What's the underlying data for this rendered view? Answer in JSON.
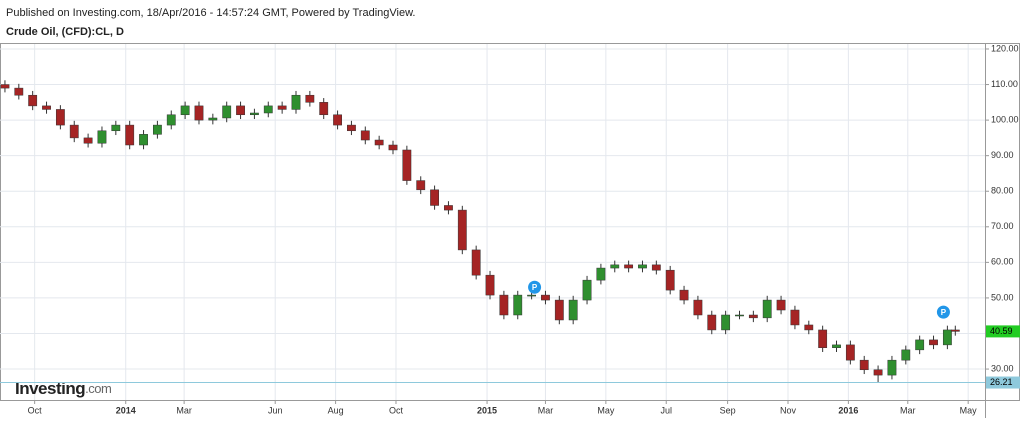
{
  "header": "Published on Investing.com, 18/Apr/2016 - 14:57:24 GMT, Powered by TradingView.",
  "logo": {
    "brand": "Investing",
    "suffix": ".com"
  },
  "chart_data": {
    "type": "candlestick",
    "title": "Crude Oil, (CFD):CL, D",
    "x": [
      0,
      14,
      28,
      42,
      56,
      70,
      84,
      98,
      112,
      126,
      140,
      154,
      168,
      182,
      196,
      210,
      224,
      238,
      252,
      266,
      280,
      294,
      308,
      322,
      336,
      350,
      364,
      378,
      392,
      406,
      420,
      434,
      448,
      462,
      476,
      490,
      504,
      518,
      532,
      546,
      560,
      574,
      588,
      602,
      616,
      630,
      644,
      658,
      672,
      686,
      700,
      714,
      728,
      742,
      756,
      770,
      784,
      798,
      812,
      826,
      840,
      854,
      868,
      882,
      896,
      910,
      924,
      938,
      952,
      960
    ],
    "open": [
      110,
      109,
      107,
      104,
      103,
      98.6,
      95,
      93.5,
      97,
      98.6,
      93,
      96,
      98.6,
      101.5,
      104,
      100,
      100.6,
      104,
      101.5,
      102,
      104,
      103,
      107,
      105,
      101.5,
      98.6,
      97,
      94.4,
      93,
      91.6,
      83,
      80.4,
      76,
      74.7,
      63.5,
      56.4,
      50.8,
      45.2,
      50.8,
      50.8,
      49.4,
      43.8,
      49.4,
      55,
      58.4,
      59.3,
      58.4,
      59.3,
      57.8,
      52.2,
      49.4,
      45.2,
      41,
      45.2,
      45.2,
      44.4,
      49.4,
      46.6,
      42.4,
      41,
      36,
      36.8,
      32.5,
      29.8,
      28.3,
      32.5,
      35.4,
      38.2,
      36.8,
      41
    ],
    "high": [
      111.2,
      110.2,
      108.2,
      105.2,
      104.2,
      99.8,
      96.2,
      98.2,
      99.8,
      99.8,
      97.2,
      99.8,
      102.7,
      105.2,
      105.2,
      101.8,
      105.2,
      105.2,
      103.2,
      105.2,
      105.2,
      108.2,
      108.2,
      106.2,
      102.7,
      99.8,
      98.2,
      95.6,
      94.2,
      92.8,
      84.2,
      81.6,
      77.2,
      75.9,
      64.7,
      57.6,
      52,
      52,
      52,
      52,
      50.6,
      50.6,
      56.2,
      59.6,
      60.5,
      60.5,
      60.5,
      60.5,
      59,
      53.4,
      50.6,
      46.4,
      46.4,
      46.4,
      46.4,
      50.6,
      50.6,
      47.8,
      43.6,
      42.2,
      38,
      38,
      33.7,
      31,
      33.7,
      36.6,
      39.4,
      39.4,
      42.2,
      42.2
    ],
    "low": [
      107.8,
      105.8,
      102.8,
      101.8,
      97.4,
      93.8,
      92.3,
      92.3,
      95.8,
      91.8,
      91.8,
      94.8,
      97.4,
      100.3,
      98.8,
      98.8,
      99.4,
      100.3,
      100.3,
      100.8,
      101.8,
      101.8,
      103.8,
      100.3,
      97.4,
      95.8,
      93.2,
      91.8,
      90.4,
      81.8,
      79.2,
      74.8,
      73.5,
      62.3,
      55.2,
      49.6,
      44,
      44,
      49.6,
      48.2,
      42.6,
      42.6,
      48.2,
      53.8,
      57.2,
      57.2,
      57.2,
      56.6,
      51,
      48.2,
      44,
      39.8,
      39.8,
      44,
      43.2,
      43.2,
      45.4,
      41.2,
      39.8,
      34.8,
      34.8,
      31.3,
      28.6,
      26.21,
      27.1,
      31.3,
      34.2,
      35.6,
      35.6,
      39.39
    ],
    "close": [
      109,
      107,
      104,
      103,
      98.6,
      95,
      93.5,
      97,
      98.6,
      93,
      96,
      98.6,
      101.5,
      104,
      100,
      100.6,
      104,
      101.5,
      102,
      104,
      103,
      107,
      105,
      101.5,
      98.6,
      97,
      94.4,
      93,
      91.6,
      83,
      80.4,
      76,
      74.7,
      63.5,
      56.4,
      50.8,
      45.2,
      50.8,
      50.8,
      49.4,
      43.8,
      49.4,
      55,
      58.4,
      59.3,
      58.4,
      59.3,
      57.8,
      52.2,
      49.4,
      45.2,
      41,
      45.2,
      45.2,
      44.4,
      49.4,
      46.6,
      42.4,
      41,
      36,
      36.8,
      32.5,
      29.8,
      28.3,
      32.5,
      35.4,
      38.2,
      36.8,
      41,
      40.59
    ],
    "up_color": "#2f8f2f",
    "down_color": "#a52424",
    "xlim": [
      -5,
      990
    ],
    "ylim": [
      21.3,
      121.4
    ],
    "xticks": [
      {
        "value": 30,
        "label": "Oct"
      },
      {
        "value": 122,
        "label": "2014"
      },
      {
        "value": 181,
        "label": "Mar"
      },
      {
        "value": 273,
        "label": "Jun"
      },
      {
        "value": 334,
        "label": "Aug"
      },
      {
        "value": 395,
        "label": "Oct"
      },
      {
        "value": 487,
        "label": "2015"
      },
      {
        "value": 546,
        "label": "Mar"
      },
      {
        "value": 607,
        "label": "May"
      },
      {
        "value": 668,
        "label": "Jul"
      },
      {
        "value": 730,
        "label": "Sep"
      },
      {
        "value": 791,
        "label": "Nov"
      },
      {
        "value": 852,
        "label": "2016"
      },
      {
        "value": 912,
        "label": "Mar"
      },
      {
        "value": 973,
        "label": "May"
      }
    ],
    "yticks": [
      {
        "value": 30,
        "label": "30.00"
      },
      {
        "value": 40,
        "label": "40.00"
      },
      {
        "value": 50,
        "label": "50.00"
      },
      {
        "value": 60,
        "label": "60.00"
      },
      {
        "value": 70,
        "label": "70.00"
      },
      {
        "value": 80,
        "label": "80.00"
      },
      {
        "value": 90,
        "label": "90.00"
      },
      {
        "value": 100,
        "label": "100.00"
      },
      {
        "value": 110,
        "label": "110.00"
      },
      {
        "value": 120,
        "label": "120.00"
      }
    ],
    "grid": true,
    "last_price": 40.59,
    "last_price_color": "#22cc22",
    "low_line": 26.21,
    "low_line_color": "#8ec9dc",
    "markers": [
      {
        "x": 535,
        "y": 53,
        "label": "P"
      },
      {
        "x": 948,
        "y": 46,
        "label": "P"
      }
    ],
    "marker_color": "#2196e8"
  }
}
